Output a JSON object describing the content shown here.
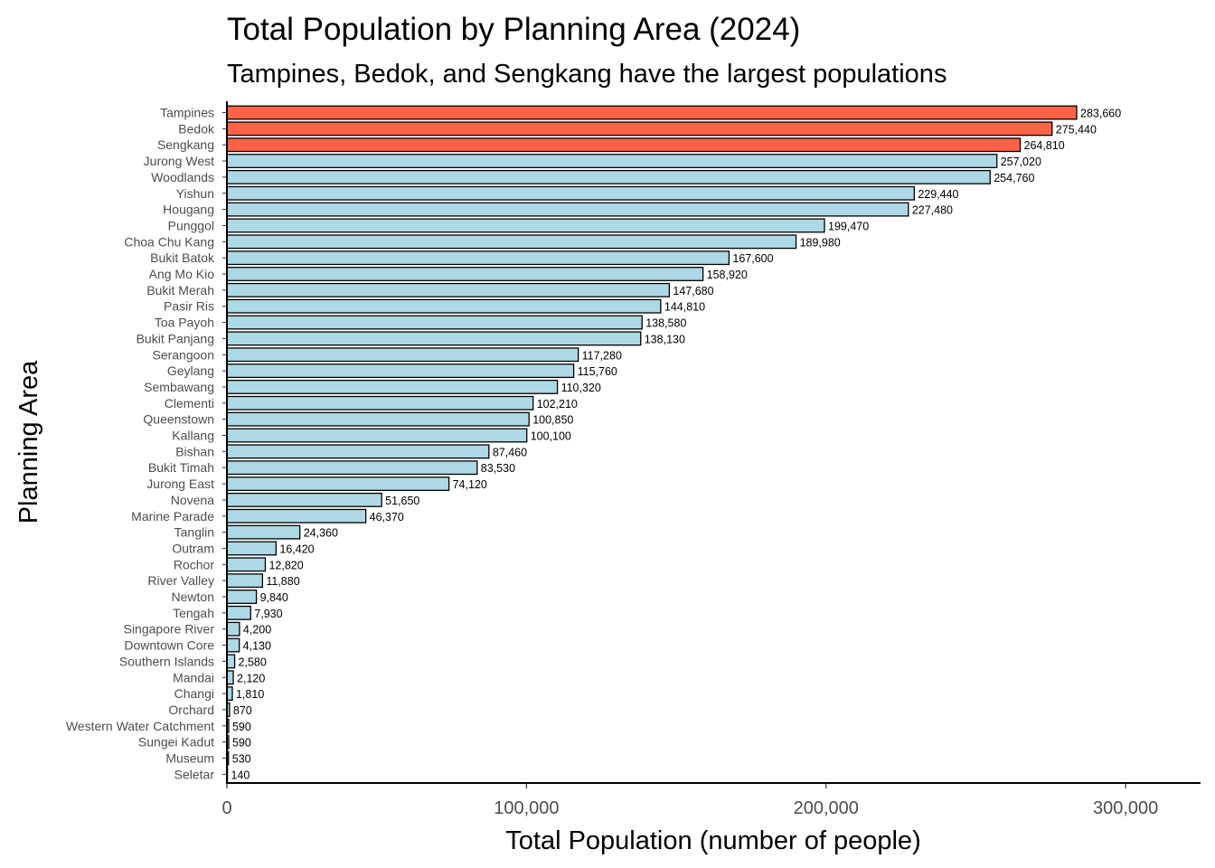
{
  "chart_data": {
    "type": "bar",
    "orientation": "horizontal",
    "title": "Total Population by Planning Area (2024)",
    "subtitle": "Tampines, Bedok, and Sengkang have the largest populations",
    "xlabel": "Total Population (number of people)",
    "ylabel": "Planning Area",
    "xlim": [
      0,
      325000
    ],
    "xticks": [
      0,
      100000,
      200000,
      300000
    ],
    "xtick_labels": [
      "0",
      "100,000",
      "200,000",
      "300,000"
    ],
    "grid": false,
    "colors": {
      "highlight": "#ff6347",
      "default": "#add8e6",
      "outline": "#000000"
    },
    "categories": [
      "Tampines",
      "Bedok",
      "Sengkang",
      "Jurong West",
      "Woodlands",
      "Yishun",
      "Hougang",
      "Punggol",
      "Choa Chu Kang",
      "Bukit Batok",
      "Ang Mo Kio",
      "Bukit Merah",
      "Pasir Ris",
      "Toa Payoh",
      "Bukit Panjang",
      "Serangoon",
      "Geylang",
      "Sembawang",
      "Clementi",
      "Queenstown",
      "Kallang",
      "Bishan",
      "Bukit Timah",
      "Jurong East",
      "Novena",
      "Marine Parade",
      "Tanglin",
      "Outram",
      "Rochor",
      "River Valley",
      "Newton",
      "Tengah",
      "Singapore River",
      "Downtown Core",
      "Southern Islands",
      "Mandai",
      "Changi",
      "Orchard",
      "Western Water Catchment",
      "Sungei Kadut",
      "Museum",
      "Seletar"
    ],
    "values": [
      283660,
      275440,
      264810,
      257020,
      254760,
      229440,
      227480,
      199470,
      189980,
      167600,
      158920,
      147680,
      144810,
      138580,
      138130,
      117280,
      115760,
      110320,
      102210,
      100850,
      100100,
      87460,
      83530,
      74120,
      51650,
      46370,
      24360,
      16420,
      12820,
      11880,
      9840,
      7930,
      4200,
      4130,
      2580,
      2120,
      1810,
      870,
      590,
      590,
      530,
      140
    ],
    "value_labels": [
      "283,660",
      "275,440",
      "264,810",
      "257,020",
      "254,760",
      "229,440",
      "227,480",
      "199,470",
      "189,980",
      "167,600",
      "158,920",
      "147,680",
      "144,810",
      "138,580",
      "138,130",
      "117,280",
      "115,760",
      "110,320",
      "102,210",
      "100,850",
      "100,100",
      "87,460",
      "83,530",
      "74,120",
      "51,650",
      "46,370",
      "24,360",
      "16,420",
      "12,820",
      "11,880",
      "9,840",
      "7,930",
      "4,200",
      "4,130",
      "2,580",
      "2,120",
      "1,810",
      "870",
      "590",
      "590",
      "530",
      "140"
    ],
    "highlighted": [
      "Tampines",
      "Bedok",
      "Sengkang"
    ]
  }
}
